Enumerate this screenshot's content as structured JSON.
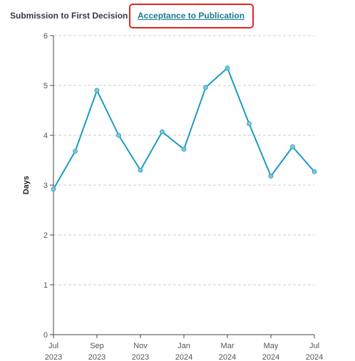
{
  "tabs": {
    "first": "Submission to First Decision",
    "active": "Acceptance to Publication"
  },
  "colors": {
    "line": "#1b9bbf",
    "point": "#7ec6dd",
    "grid": "#cccccc",
    "highlight": "#e8231f"
  },
  "chart_data": {
    "type": "line",
    "title": "",
    "xlabel": "",
    "ylabel": "Days",
    "ylim": [
      0,
      6
    ],
    "yticks": [
      0,
      1,
      2,
      3,
      4,
      5,
      6
    ],
    "grid": true,
    "x": [
      "2023-07",
      "2023-08",
      "2023-09",
      "2023-10",
      "2023-11",
      "2023-12",
      "2024-01",
      "2024-02",
      "2024-03",
      "2024-04",
      "2024-05",
      "2024-06",
      "2024-07"
    ],
    "xticks": [
      {
        "month": "Jul",
        "year": "2023"
      },
      {
        "month": "Sep",
        "year": "2023"
      },
      {
        "month": "Nov",
        "year": "2023"
      },
      {
        "month": "Jan",
        "year": "2024"
      },
      {
        "month": "Mar",
        "year": "2024"
      },
      {
        "month": "May",
        "year": "2024"
      },
      {
        "month": "Jul",
        "year": "2024"
      }
    ],
    "values": [
      2.92,
      3.68,
      4.9,
      4.0,
      3.3,
      4.07,
      3.72,
      4.96,
      5.35,
      4.23,
      3.18,
      3.77,
      3.27
    ]
  }
}
